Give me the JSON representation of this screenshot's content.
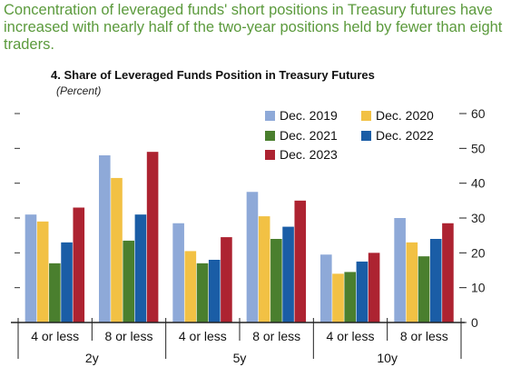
{
  "headline": "Concentration of leveraged funds' short positions in Treasury futures have increased with nearly half of the two-year positions held by fewer than eight traders.",
  "chart_data": {
    "type": "bar",
    "title": "4. Share of Leveraged Funds Position in Treasury Futures",
    "subtitle": "(Percent)",
    "xlabel": "",
    "ylabel": "",
    "ylim": [
      0,
      60
    ],
    "yticks": [
      0,
      10,
      20,
      30,
      40,
      50,
      60
    ],
    "y_axis_side": "right",
    "grid": false,
    "legend_position": "top-right",
    "groups": [
      "2y",
      "5y",
      "10y"
    ],
    "categories": [
      "4 or less",
      "8 or less",
      "4 or less",
      "8 or less",
      "4 or less",
      "8 or less"
    ],
    "category_groups": [
      "2y",
      "2y",
      "5y",
      "5y",
      "10y",
      "10y"
    ],
    "series": [
      {
        "name": "Dec. 2019",
        "color": "#8ea9d8",
        "values": [
          31,
          48,
          28.5,
          37.5,
          19.5,
          30
        ]
      },
      {
        "name": "Dec. 2020",
        "color": "#f2c144",
        "values": [
          29,
          41.5,
          20.5,
          30.5,
          14,
          23
        ]
      },
      {
        "name": "Dec. 2021",
        "color": "#4a7f2e",
        "values": [
          17,
          23.5,
          17,
          24,
          14.5,
          19
        ]
      },
      {
        "name": "Dec. 2022",
        "color": "#1a5da6",
        "values": [
          23,
          31,
          18,
          27.5,
          17.5,
          24
        ]
      },
      {
        "name": "Dec. 2023",
        "color": "#ad2331",
        "values": [
          33,
          49,
          24.5,
          35,
          20,
          28.5
        ]
      }
    ]
  }
}
